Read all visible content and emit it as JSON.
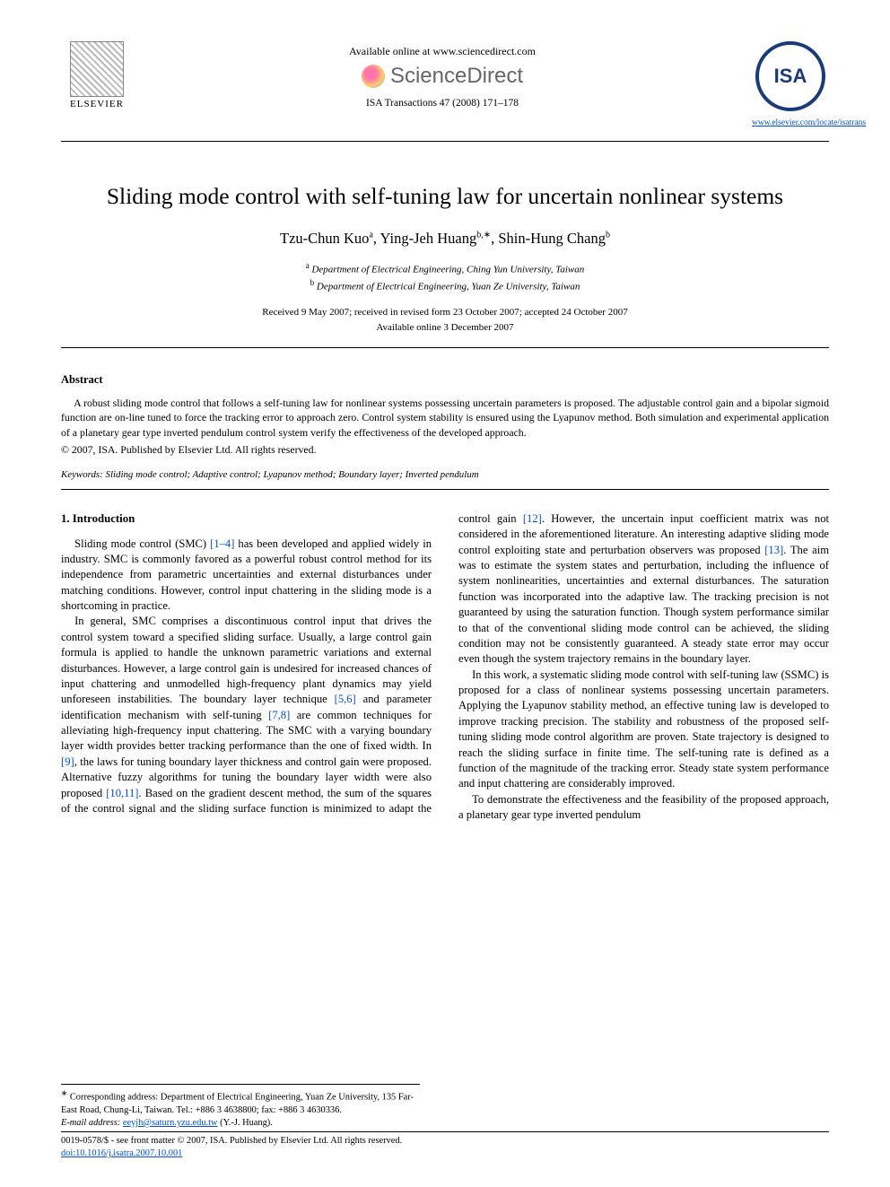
{
  "header": {
    "elsevier_label": "ELSEVIER",
    "available_line": "Available online at www.sciencedirect.com",
    "sd_text": "ScienceDirect",
    "journal_ref": "ISA Transactions 47 (2008) 171–178",
    "isa_text": "ISA",
    "isa_link": "www.elsevier.com/locate/isatrans"
  },
  "title": "Sliding mode control with self-tuning law for uncertain nonlinear systems",
  "authors_html": "Tzu-Chun Kuo",
  "author1": "Tzu-Chun Kuo",
  "author1_sup": "a",
  "author2": "Ying-Jeh Huang",
  "author2_sup": "b,∗",
  "author3": "Shin-Hung Chang",
  "author3_sup": "b",
  "aff_a_sup": "a",
  "aff_a": " Department of Electrical Engineering, Ching Yun University, Taiwan",
  "aff_b_sup": "b",
  "aff_b": " Department of Electrical Engineering, Yuan Ze University, Taiwan",
  "dates_line1": "Received 9 May 2007; received in revised form 23 October 2007; accepted 24 October 2007",
  "dates_line2": "Available online 3 December 2007",
  "abstract_head": "Abstract",
  "abstract_text": "A robust sliding mode control that follows a self-tuning law for nonlinear systems possessing uncertain parameters is proposed. The adjustable control gain and a bipolar sigmoid function are on-line tuned to force the tracking error to approach zero. Control system stability is ensured using the Lyapunov method. Both simulation and experimental application of a planetary gear type inverted pendulum control system verify the effectiveness of the developed approach.",
  "copyright": "© 2007, ISA. Published by Elsevier Ltd. All rights reserved.",
  "keywords_label": "Keywords:",
  "keywords_text": " Sliding mode control; Adaptive control; Lyapunov method; Boundary layer; Inverted pendulum",
  "section1_head": "1. Introduction",
  "p1a": "Sliding mode control (SMC) ",
  "c1": "[1–4]",
  "p1b": " has been developed and applied widely in industry. SMC is commonly favored as a powerful robust control method for its independence from parametric uncertainties and external disturbances under matching conditions. However, control input chattering in the sliding mode is a shortcoming in practice.",
  "p2a": "In general, SMC comprises a discontinuous control input that drives the control system toward a specified sliding surface. Usually, a large control gain formula is applied to handle the unknown parametric variations and external disturbances. However, a large control gain is undesired for increased chances of input chattering and unmodelled high-frequency plant dynamics may yield unforeseen instabilities. The boundary layer technique ",
  "c2": "[5,6]",
  "p2b": " and parameter identification mechanism with self-tuning ",
  "c3": "[7,8]",
  "p2c": " are common techniques for alleviating high-frequency input chattering. The SMC with a varying boundary layer width provides better tracking performance than the one of fixed width. In ",
  "c4": "[9]",
  "p2d": ", the laws for tuning boundary layer thickness and control gain were proposed. Alternative fuzzy algorithms for tuning the boundary layer width were also proposed ",
  "c5": "[10,11]",
  "p2e": ". Based on the gradient descent method, the sum of the squares of the control signal and the sliding surface function is minimized to adapt the control gain ",
  "c6": "[12]",
  "p2f": ". However, the uncertain input coefficient matrix was not considered in the aforementioned literature. An interesting adaptive sliding mode control exploiting state and perturbation observers was proposed ",
  "c7": "[13]",
  "p2g": ". The aim was to estimate the system states and perturbation, including the influence of system nonlinearities, uncertainties and external disturbances. The saturation function was incorporated into the adaptive law. The tracking precision is not guaranteed by using the saturation function. Though system performance similar to that of the conventional sliding mode control can be achieved, the sliding condition may not be consistently guaranteed. A steady state error may occur even though the system trajectory remains in the boundary layer.",
  "p3": "In this work, a systematic sliding mode control with self-tuning law (SSMC) is proposed for a class of nonlinear systems possessing uncertain parameters. Applying the Lyapunov stability method, an effective tuning law is developed to improve tracking precision. The stability and robustness of the proposed self-tuning sliding mode control algorithm are proven. State trajectory is designed to reach the sliding surface in finite time. The self-tuning rate is defined as a function of the magnitude of the tracking error. Steady state system performance and input chattering are considerably improved.",
  "p4": "To demonstrate the effectiveness and the feasibility of the proposed approach, a planetary gear type inverted pendulum",
  "footnote": {
    "corr_label": "∗",
    "corr_text": " Corresponding address: Department of Electrical Engineering, Yuan Ze University, 135 Far-East Road, Chung-Li, Taiwan. Tel.: +886 3 4638800; fax: +886 3 4630336.",
    "email_label": "E-mail address: ",
    "email": "eeyjh@saturn.yzu.edu.tw",
    "email_tail": " (Y.-J. Huang)."
  },
  "footer": {
    "line1": "0019-0578/$ - see front matter © 2007, ISA. Published by Elsevier Ltd. All rights reserved.",
    "doi": "doi:10.1016/j.isatra.2007.10.001"
  }
}
